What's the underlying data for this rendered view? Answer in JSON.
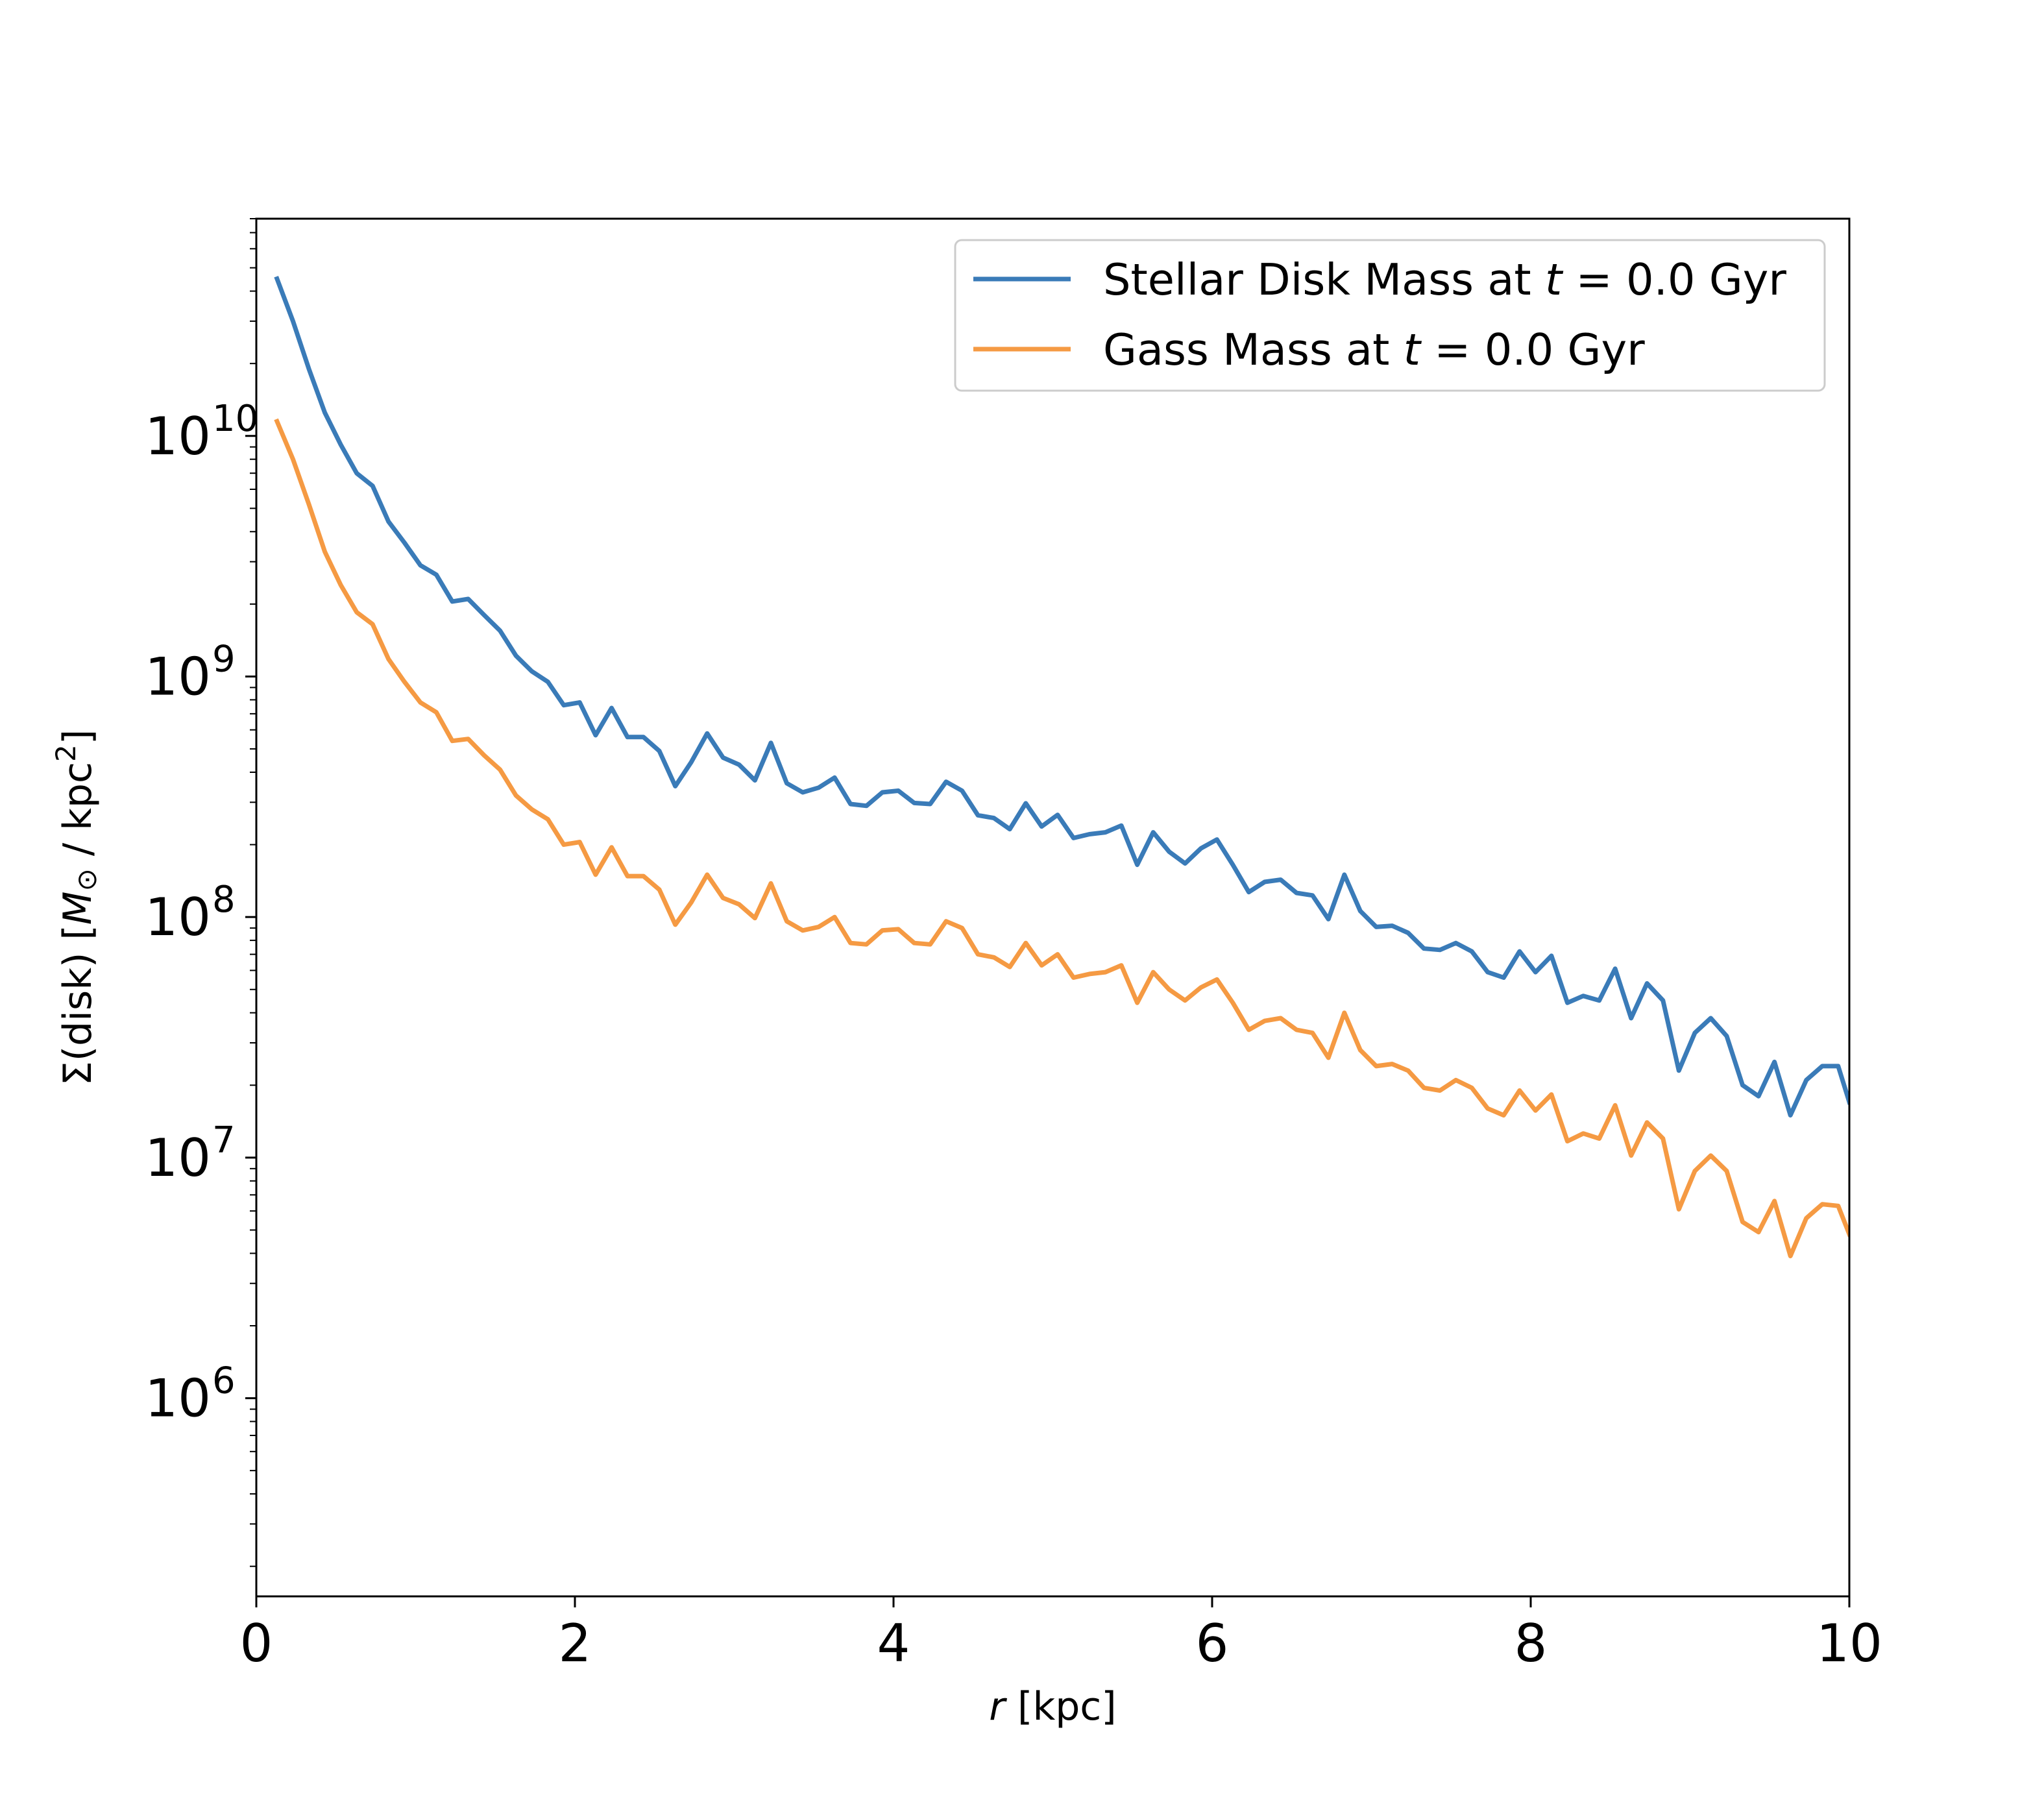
{
  "chart_data": {
    "type": "line",
    "title": "",
    "xlabel_var": "r",
    "xlabel_unit": " [kpc]",
    "ylabel_main": "Σ(disk) [",
    "ylabel_var": "M",
    "ylabel_sub": "⊙",
    "ylabel_unit": " / kpc",
    "ylabel_sup": "2",
    "ylabel_close": "]",
    "xlim": [
      0,
      10
    ],
    "ylim": [
      150000,
      80000000000
    ],
    "yscale": "log",
    "grid": false,
    "legend_position": "top-right",
    "x_ticks": [
      {
        "value": 0,
        "label": "0"
      },
      {
        "value": 2,
        "label": "2"
      },
      {
        "value": 4,
        "label": "4"
      },
      {
        "value": 6,
        "label": "6"
      },
      {
        "value": 8,
        "label": "8"
      },
      {
        "value": 10,
        "label": "10"
      }
    ],
    "y_ticks": [
      {
        "value": 1000000,
        "base": "10",
        "exp": "6"
      },
      {
        "value": 10000000,
        "base": "10",
        "exp": "7"
      },
      {
        "value": 100000000,
        "base": "10",
        "exp": "8"
      },
      {
        "value": 1000000000,
        "base": "10",
        "exp": "9"
      },
      {
        "value": 10000000000,
        "base": "10",
        "exp": "10"
      }
    ],
    "x": [
      0.13,
      0.23,
      0.33,
      0.43,
      0.53,
      0.63,
      0.73,
      0.83,
      0.93,
      1.03,
      1.13,
      1.23,
      1.33,
      1.43,
      1.53,
      1.63,
      1.73,
      1.83,
      1.93,
      2.03,
      2.13,
      2.23,
      2.33,
      2.43,
      2.53,
      2.63,
      2.73,
      2.83,
      2.93,
      3.03,
      3.13,
      3.23,
      3.33,
      3.43,
      3.53,
      3.63,
      3.73,
      3.83,
      3.93,
      4.03,
      4.13,
      4.23,
      4.33,
      4.43,
      4.53,
      4.63,
      4.73,
      4.83,
      4.93,
      5.03,
      5.13,
      5.23,
      5.33,
      5.43,
      5.53,
      5.63,
      5.73,
      5.83,
      5.93,
      6.03,
      6.13,
      6.23,
      6.33,
      6.43,
      6.53,
      6.63,
      6.73,
      6.83,
      6.93,
      7.03,
      7.13,
      7.23,
      7.33,
      7.43,
      7.53,
      7.63,
      7.73,
      7.83,
      7.93,
      8.03,
      8.13,
      8.23,
      8.33,
      8.43,
      8.53,
      8.63,
      8.73,
      8.83,
      8.93,
      9.03,
      9.13,
      9.23,
      9.33,
      9.43,
      9.53,
      9.63,
      9.73,
      9.83,
      9.93,
      10.0
    ],
    "series": [
      {
        "name_prefix": "Stellar Disk Mass at ",
        "name_var": "t",
        "name_suffix": " = 0.0 Gyr",
        "color": "#3a7bb8",
        "values": [
          45000000000,
          30000000000,
          19000000000,
          12500000000,
          9200000000,
          7000000000,
          6200000000,
          4400000000,
          3600000000,
          2900000000,
          2650000000,
          2050000000,
          2100000000,
          1800000000,
          1550000000,
          1220000000,
          1050000000,
          950000000,
          760000000,
          780000000,
          570000000,
          740000000,
          560000000,
          560000000,
          490000000,
          350000000,
          440000000,
          580000000,
          460000000,
          430000000,
          370000000,
          530000000,
          360000000,
          330000000,
          345000000,
          380000000,
          295000000,
          290000000,
          330000000,
          335000000,
          298000000,
          295000000,
          365000000,
          335000000,
          265000000,
          258000000,
          232000000,
          297000000,
          238000000,
          266000000,
          213000000,
          221000000,
          225000000,
          240000000,
          165000000,
          225000000,
          187000000,
          167000000,
          193000000,
          210000000,
          165000000,
          127000000,
          140000000,
          143000000,
          126000000,
          123000000,
          98000000,
          150000000,
          106000000,
          91000000,
          92000000,
          86000000,
          74000000,
          73000000,
          78000000,
          72000000,
          59000000,
          56000000,
          72000000,
          59000000,
          69000000,
          44000000,
          47000000,
          45000000,
          61000000,
          38000000,
          53000000,
          45000000,
          23000000,
          33000000,
          38000000,
          32000000,
          20000000,
          18000000,
          25000000,
          15000000,
          21000000,
          24000000,
          24000000,
          17000000
        ]
      },
      {
        "name_prefix": "Gass Mass at ",
        "name_var": "t",
        "name_suffix": " = 0.0 Gyr",
        "color": "#f59a43",
        "values": [
          11500000000,
          8000000000,
          5200000000,
          3300000000,
          2400000000,
          1850000000,
          1650000000,
          1180000000,
          950000000,
          780000000,
          710000000,
          540000000,
          550000000,
          470000000,
          410000000,
          320000000,
          280000000,
          255000000,
          200000000,
          205000000,
          150000000,
          195000000,
          148000000,
          148000000,
          130000000,
          93000000,
          115000000,
          150000000,
          120000000,
          113000000,
          99000000,
          138000000,
          96000000,
          88000000,
          91000000,
          100000000,
          78000000,
          77000000,
          88000000,
          89000000,
          78000000,
          77000000,
          96000000,
          90000000,
          70000000,
          68000000,
          62000000,
          78000000,
          63000000,
          70000000,
          56000000,
          58000000,
          59000000,
          63000000,
          44000000,
          59000000,
          50000000,
          45000000,
          51000000,
          55000000,
          44000000,
          34000000,
          37000000,
          38000000,
          34000000,
          33000000,
          26000000,
          40000000,
          28000000,
          24000000,
          24500000,
          23000000,
          19500000,
          19000000,
          21000000,
          19500000,
          16000000,
          15000000,
          19000000,
          15700000,
          18300000,
          11700000,
          12600000,
          12000000,
          16500000,
          10200000,
          14000000,
          12000000,
          6100000,
          8800000,
          10200000,
          8800000,
          5400000,
          4900000,
          6600000,
          3900000,
          5600000,
          6400000,
          6300000,
          4800000
        ]
      }
    ]
  }
}
